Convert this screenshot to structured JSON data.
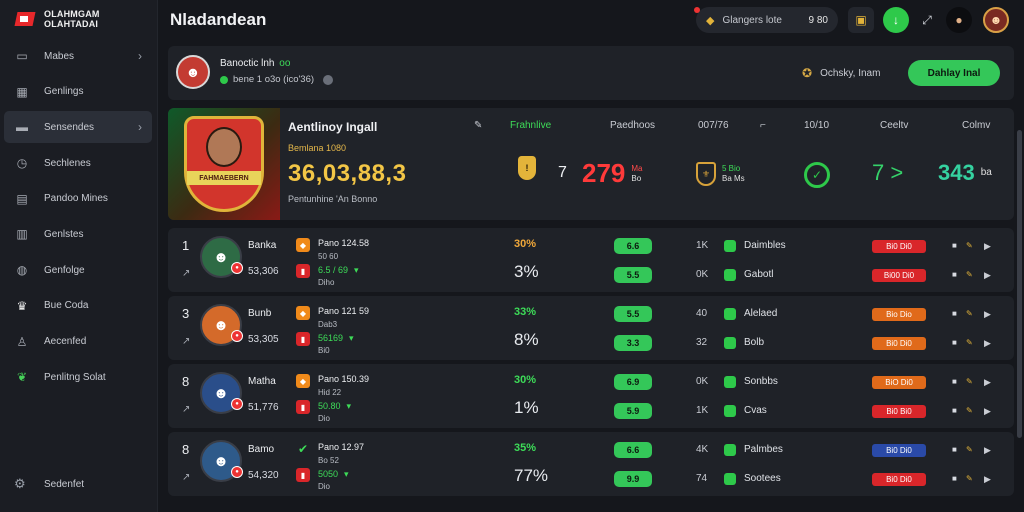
{
  "app": {
    "logo_line1": "OLAHMGAM",
    "logo_line2": "OLAHTADAI"
  },
  "sidebar": {
    "items": [
      {
        "label": "Mabes",
        "icon": "cards-icon",
        "chevron": true
      },
      {
        "label": "Genlings",
        "icon": "calendar-icon",
        "chevron": false
      },
      {
        "label": "Sensendes",
        "icon": "card-icon",
        "chevron": true,
        "active": true
      },
      {
        "label": "Sechlenes",
        "icon": "clock-icon",
        "chevron": false
      },
      {
        "label": "Pandoo Mines",
        "icon": "grid-icon",
        "chevron": false
      },
      {
        "label": "Genlstes",
        "icon": "board-icon",
        "chevron": false
      },
      {
        "label": "Genfolge",
        "icon": "globe-icon",
        "chevron": false
      },
      {
        "label": "Bue Coda",
        "icon": "trophy-icon",
        "chevron": false
      },
      {
        "label": "Aecenfed",
        "icon": "person-icon",
        "chevron": false
      },
      {
        "label": "Penlitng Solat",
        "icon": "leaf-icon",
        "chevron": false
      }
    ],
    "settings_label": "Sedenfet"
  },
  "header": {
    "title": "Nladandean",
    "search_label": "Glangers lote",
    "search_value": "9 80"
  },
  "profile": {
    "name": "Banoctic lnh",
    "name_tag": "oo",
    "stats": "bene 1 o3o (ico'36)",
    "badge_label": "Ochsky, Inam",
    "cta_label": "Dahlay Inal"
  },
  "featured": {
    "title": "Aentlinoy Ingall",
    "subtitle": "Bemlana 1080",
    "big_value": "36,03,88,3",
    "caption": "Pentunhine 'An Bonno",
    "crest_text": "FAHMAEBERN",
    "columns": [
      "Frahnlive",
      "Paedhoos",
      "007/76",
      "10/10",
      "Ceeltv",
      "Colmv"
    ],
    "values": {
      "v1": "7",
      "red": "279",
      "red_tiny_a": "Ma",
      "red_tiny_b": "Bo",
      "shield_tiny_a": "5 Bio",
      "shield_tiny_b": "Ba Ms",
      "green1": "7 >",
      "green2": "343",
      "green2_tiny": "ba"
    }
  },
  "rows": [
    {
      "rank": "1",
      "name": "Banka",
      "score": "53,306",
      "match": "Pano 124.58",
      "match_sub": "50 60",
      "match_line": "6.5 / 69",
      "match_sub2": "Diho",
      "pct_top": "30%",
      "pct_top_color": "#f0a83a",
      "pct_bottom": "3%",
      "pill_top": "6.6",
      "pill_bottom": "5.5",
      "k_top": "1K",
      "k_bottom": "0K",
      "label_top": "Daimbles",
      "label_bottom": "Gabotl",
      "tag_top": "Bi0 Di0",
      "tag_top_color": "#d9262a",
      "tag_bottom": "Bi00 Di0",
      "tag_bottom_color": "#d9262a",
      "avatar_bg": "#2e6b45",
      "badge1_type": "orange"
    },
    {
      "rank": "3",
      "name": "Bunb",
      "score": "53,305",
      "match": "Pano 121 59",
      "match_sub": "Dab3",
      "match_line": "56169",
      "match_sub2": "Bi0",
      "pct_top": "33%",
      "pct_top_color": "#3ddc58",
      "pct_bottom": "8%",
      "pill_top": "5.5",
      "pill_bottom": "3.3",
      "k_top": "40",
      "k_bottom": "32",
      "label_top": "Alelaed",
      "label_bottom": "Bolb",
      "tag_top": "Bio Dio",
      "tag_top_color": "#e06a1a",
      "tag_bottom": "Bi0 Di0",
      "tag_bottom_color": "#e06a1a",
      "avatar_bg": "#d46a2a",
      "badge1_type": "orange"
    },
    {
      "rank": "8",
      "name": "Matha",
      "score": "51,776",
      "match": "Pano 150.39",
      "match_sub": "Hid 22",
      "match_line": "50.80",
      "match_sub2": "Dio",
      "pct_top": "30%",
      "pct_top_color": "#3ddc58",
      "pct_bottom": "1%",
      "pill_top": "6.9",
      "pill_bottom": "5.9",
      "k_top": "0K",
      "k_bottom": "1K",
      "label_top": "Sonbbs",
      "label_bottom": "Cvas",
      "tag_top": "BiO Di0",
      "tag_top_color": "#e06a1a",
      "tag_bottom": "Bi0 Bi0",
      "tag_bottom_color": "#d9262a",
      "avatar_bg": "#2a4e8a",
      "badge1_type": "orange"
    },
    {
      "rank": "8",
      "name": "Bamo",
      "score": "54,320",
      "match": "Pano 12.97",
      "match_sub": "Bo 52",
      "match_line": "5050",
      "match_sub2": "Dio",
      "pct_top": "35%",
      "pct_top_color": "#3ddc58",
      "pct_bottom": "77%",
      "pill_top": "6.6",
      "pill_bottom": "9.9",
      "k_top": "4K",
      "k_bottom": "74",
      "label_top": "Palmbes",
      "label_bottom": "Sootees",
      "tag_top": "Bi0 Di0",
      "tag_top_color": "#2a4aa8",
      "tag_bottom": "Bi0 Di0",
      "tag_bottom_color": "#d9262a",
      "avatar_bg": "#2e5a8a",
      "badge1_type": "check"
    }
  ]
}
